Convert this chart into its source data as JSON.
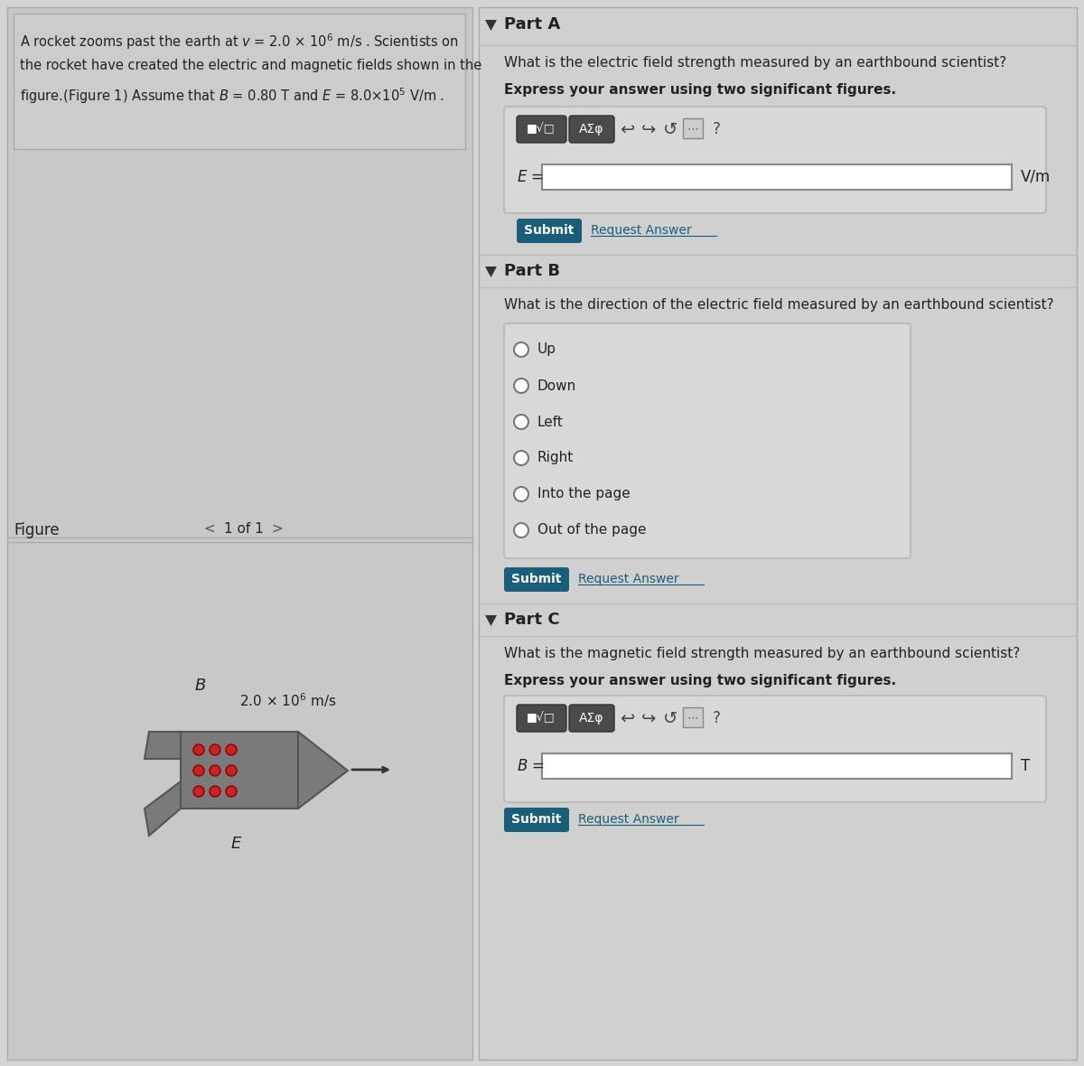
{
  "bg_color": "#d4d4d4",
  "left_panel_bg": "#c8c8c8",
  "right_panel_bg": "#d0d0d0",
  "part_a_title": "Part A",
  "part_a_question": "What is the electric field strength measured by an earthbound scientist?",
  "part_a_instruction": "Express your answer using two significant figures.",
  "part_a_var": "E =",
  "part_a_unit": "V/m",
  "part_b_title": "Part B",
  "part_b_question": "What is the direction of the electric field measured by an earthbound scientist?",
  "part_b_options": [
    "Up",
    "Down",
    "Left",
    "Right",
    "Into the page",
    "Out of the page"
  ],
  "part_c_title": "Part C",
  "part_c_question": "What is the magnetic field strength measured by an earthbound scientist?",
  "part_c_instruction": "Express your answer using two significant figures.",
  "part_c_var": "B =",
  "part_c_unit": "T",
  "submit_bg": "#1a5f7a",
  "submit_text_color": "#ffffff",
  "toolbar_bg": "#4a4a4a",
  "input_bg": "#ffffff",
  "panel_border": "#bbbbbb",
  "text_color": "#222222",
  "request_answer_color": "#1a5f7a",
  "figure_label": "Figure",
  "figure_nav": "1 of 1"
}
